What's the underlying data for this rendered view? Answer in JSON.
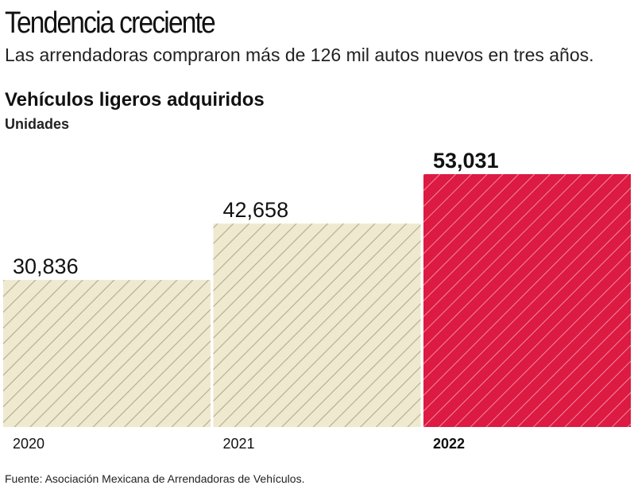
{
  "header": {
    "title": "Tendencia creciente",
    "subtitle": "Las arrendadoras compraron más de 126 mil autos nuevos en tres años."
  },
  "chart_data": {
    "type": "bar",
    "title": "Vehículos ligeros adquiridos",
    "ylabel": "Unidades",
    "categories": [
      "2020",
      "2021",
      "2022"
    ],
    "values": [
      30836,
      42658,
      53031
    ],
    "value_labels": [
      "30,836",
      "42,658",
      "53,031"
    ],
    "ylim": [
      0,
      53031
    ],
    "grid": false,
    "highlight_category": "2022",
    "colors": {
      "base": "#efe9cf",
      "base_stripe": "#b3ab8c",
      "highlight": "#dc1a42",
      "highlight_stripe": "#f08aa0"
    }
  },
  "footer": {
    "source": "Fuente: Asociación Mexicana de Arrendadoras de Vehículos."
  }
}
